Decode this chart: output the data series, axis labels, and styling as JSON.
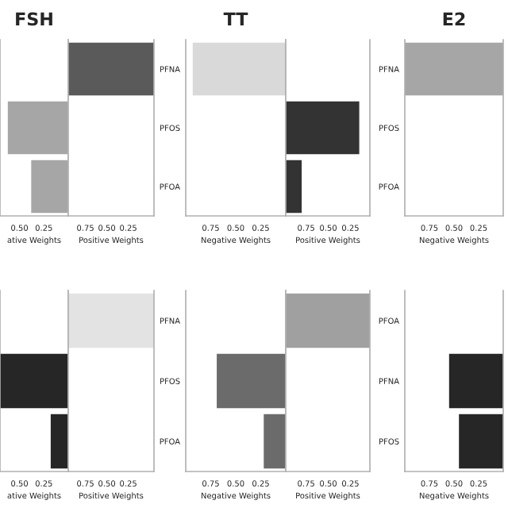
{
  "chart_data": [
    {
      "type": "bar",
      "orientation": "horizontal",
      "title": "FSH",
      "categories": [
        null,
        null,
        null
      ],
      "values": [
        null,
        0.62,
        0.38
      ],
      "colors": [
        "#a6a6a6",
        "#a6a6a6",
        "#a6a6a6"
      ],
      "xlim": [
        0.7,
        0
      ],
      "xticks": [
        {
          "value": 0.5,
          "label": "0.50"
        },
        {
          "value": 0.25,
          "label": "0.25"
        }
      ],
      "xlabel": "ative Weights",
      "tick_labels": "x"
    },
    {
      "type": "bar",
      "orientation": "horizontal",
      "categories": [
        null,
        null,
        null
      ],
      "base": [
        0.95,
        null,
        null
      ],
      "values": [
        -1.0,
        null,
        null
      ],
      "colors": [
        "#5a5a5a",
        "#5a5a5a",
        "#5a5a5a"
      ],
      "xlim": [
        0.95,
        -0.05
      ],
      "xticks": [
        {
          "value": 0.75,
          "label": "0.75"
        },
        {
          "value": 0.5,
          "label": "0.50"
        },
        {
          "value": 0.25,
          "label": "0.25"
        }
      ],
      "xlabel": "Positive Weights",
      "tick_labels": "x"
    },
    {
      "type": "bar",
      "orientation": "horizontal",
      "title": "TT",
      "categories": [
        "PFNA",
        "PFOS",
        "PFOA"
      ],
      "values": [
        0.93,
        null,
        null
      ],
      "colors": [
        "#d9d9d9",
        "#d9d9d9",
        "#d9d9d9"
      ],
      "xlim": [
        1,
        0
      ],
      "xticks": [
        {
          "value": 0.75,
          "label": "0.75"
        },
        {
          "value": 0.5,
          "label": "0.50"
        },
        {
          "value": 0.25,
          "label": "0.25"
        }
      ],
      "xlabel": "Negative Weights"
    },
    {
      "type": "bar",
      "orientation": "horizontal",
      "categories": [
        null,
        null,
        null
      ],
      "base": [
        null,
        0.98,
        0.98
      ],
      "values": [
        null,
        -0.83,
        -0.18
      ],
      "colors": [
        "#333333",
        "#333333",
        "#333333"
      ],
      "xlim": [
        0.98,
        0.03
      ],
      "xticks": [
        {
          "value": 0.75,
          "label": "0.75"
        },
        {
          "value": 0.5,
          "label": "0.50"
        },
        {
          "value": 0.25,
          "label": "0.25"
        }
      ],
      "xlabel": "Positive Weights",
      "tick_labels": "x"
    },
    {
      "type": "bar",
      "orientation": "horizontal",
      "title": "E2",
      "categories": [
        "PFNA",
        "PFOS",
        "PFOA"
      ],
      "values": [
        1.0,
        null,
        null
      ],
      "colors": [
        "#a6a6a6",
        "#a6a6a6",
        "#a6a6a6"
      ],
      "xlim": [
        1,
        0
      ],
      "xticks": [
        {
          "value": 0.75,
          "label": "0.75"
        },
        {
          "value": 0.5,
          "label": "0.50"
        },
        {
          "value": 0.25,
          "label": "0.25"
        }
      ],
      "xlabel": "Negative Weights"
    },
    {
      "type": "bar",
      "orientation": "horizontal",
      "categories": [
        null,
        null,
        null
      ],
      "values": [
        null,
        0.7,
        0.18
      ],
      "colors": [
        "#262626",
        "#262626",
        "#262626"
      ],
      "xlim": [
        0.7,
        0
      ],
      "xticks": [
        {
          "value": 0.5,
          "label": "0.50"
        },
        {
          "value": 0.25,
          "label": "0.25"
        }
      ],
      "xlabel": "ative Weights",
      "tick_labels": "x"
    },
    {
      "type": "bar",
      "orientation": "horizontal",
      "categories": [
        null,
        null,
        null
      ],
      "base": [
        0.95,
        null,
        null
      ],
      "values": [
        -1.0,
        null,
        null
      ],
      "colors": [
        "#e3e3e3",
        "#e3e3e3",
        "#e3e3e3"
      ],
      "xlim": [
        0.95,
        -0.05
      ],
      "xticks": [
        {
          "value": 0.75,
          "label": "0.75"
        },
        {
          "value": 0.5,
          "label": "0.50"
        },
        {
          "value": 0.25,
          "label": "0.25"
        }
      ],
      "xlabel": "Positive Weights",
      "tick_labels": "x"
    },
    {
      "type": "bar",
      "orientation": "horizontal",
      "categories": [
        "PFNA",
        "PFOS",
        "PFOA"
      ],
      "values": [
        null,
        0.69,
        0.22
      ],
      "colors": [
        "#6b6b6b",
        "#6b6b6b",
        "#6b6b6b"
      ],
      "xlim": [
        1,
        0
      ],
      "xticks": [
        {
          "value": 0.75,
          "label": "0.75"
        },
        {
          "value": 0.5,
          "label": "0.50"
        },
        {
          "value": 0.25,
          "label": "0.25"
        }
      ],
      "xlabel": "Negative Weights"
    },
    {
      "type": "bar",
      "orientation": "horizontal",
      "categories": [
        null,
        null,
        null
      ],
      "base": [
        0.98,
        null,
        null
      ],
      "values": [
        -0.95,
        null,
        null
      ],
      "colors": [
        "#a0a0a0",
        "#a0a0a0",
        "#a0a0a0"
      ],
      "xlim": [
        0.98,
        0.03
      ],
      "xticks": [
        {
          "value": 0.75,
          "label": "0.75"
        },
        {
          "value": 0.5,
          "label": "0.50"
        },
        {
          "value": 0.25,
          "label": "0.25"
        }
      ],
      "xlabel": "Positive Weights",
      "tick_labels": "x"
    },
    {
      "type": "bar",
      "orientation": "horizontal",
      "categories": [
        "PFOA",
        "PFNA",
        "PFOS"
      ],
      "values": [
        null,
        0.55,
        0.45
      ],
      "colors": [
        "#262626",
        "#262626",
        "#262626"
      ],
      "xlim": [
        1,
        0
      ],
      "xticks": [
        {
          "value": 0.75,
          "label": "0.75"
        },
        {
          "value": 0.5,
          "label": "0.50"
        },
        {
          "value": 0.25,
          "label": "0.25"
        }
      ],
      "xlabel": "Negative Weights"
    }
  ]
}
